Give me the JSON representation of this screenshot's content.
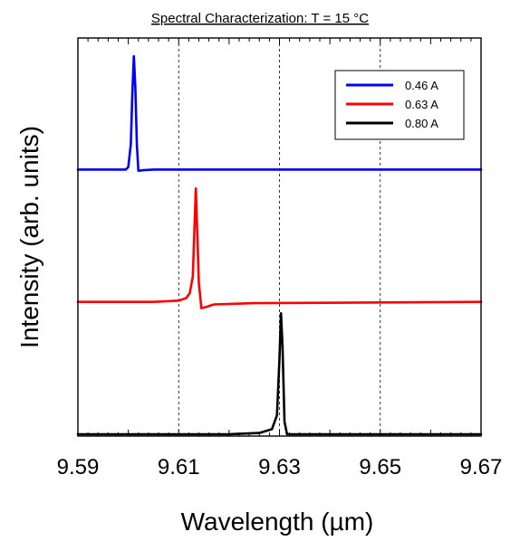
{
  "chart_data": {
    "type": "line",
    "title": "Spectral Characterization: T = 15 °C",
    "xlabel": "Wavelength (µm)",
    "ylabel": "Intensity (arb. units)",
    "xlim": [
      9.59,
      9.67
    ],
    "ylim": [
      0,
      3
    ],
    "x_ticks": [
      "9.59",
      "9.61",
      "9.63",
      "9.65",
      "9.67"
    ],
    "x_tick_values": [
      9.59,
      9.61,
      9.63,
      9.65,
      9.67
    ],
    "grid": "vertical dashed",
    "y_ticks_labeled": false,
    "legend_position": "top-right",
    "series": [
      {
        "name": "0.46 A",
        "color": "#0000ff",
        "points": [
          [
            9.59,
            2.1
          ],
          [
            9.598,
            2.1
          ],
          [
            9.5995,
            2.1
          ],
          [
            9.6,
            2.12
          ],
          [
            9.6005,
            2.3
          ],
          [
            9.6008,
            2.7
          ],
          [
            9.6011,
            3.0
          ],
          [
            9.6014,
            2.75
          ],
          [
            9.6017,
            2.3
          ],
          [
            9.602,
            2.09
          ],
          [
            9.603,
            2.095
          ],
          [
            9.605,
            2.1
          ],
          [
            9.61,
            2.1
          ],
          [
            9.63,
            2.1
          ],
          [
            9.67,
            2.1
          ]
        ]
      },
      {
        "name": "0.63 A",
        "color": "#ff0000",
        "points": [
          [
            9.59,
            1.05
          ],
          [
            9.605,
            1.05
          ],
          [
            9.61,
            1.06
          ],
          [
            9.6115,
            1.08
          ],
          [
            9.6122,
            1.12
          ],
          [
            9.6128,
            1.25
          ],
          [
            9.6131,
            1.6
          ],
          [
            9.6134,
            1.95
          ],
          [
            9.6137,
            1.58
          ],
          [
            9.614,
            1.2
          ],
          [
            9.6145,
            1.0
          ],
          [
            9.6155,
            1.01
          ],
          [
            9.617,
            1.03
          ],
          [
            9.625,
            1.04
          ],
          [
            9.67,
            1.05
          ]
        ]
      },
      {
        "name": "0.80 A",
        "color": "#000000",
        "points": [
          [
            9.59,
            0.0
          ],
          [
            9.62,
            0.0
          ],
          [
            9.626,
            0.01
          ],
          [
            9.6285,
            0.04
          ],
          [
            9.6295,
            0.15
          ],
          [
            9.63,
            0.6
          ],
          [
            9.6303,
            0.96
          ],
          [
            9.6306,
            0.7
          ],
          [
            9.631,
            0.1
          ],
          [
            9.6315,
            0.0
          ],
          [
            9.64,
            0.0
          ],
          [
            9.67,
            0.0
          ]
        ]
      }
    ]
  }
}
